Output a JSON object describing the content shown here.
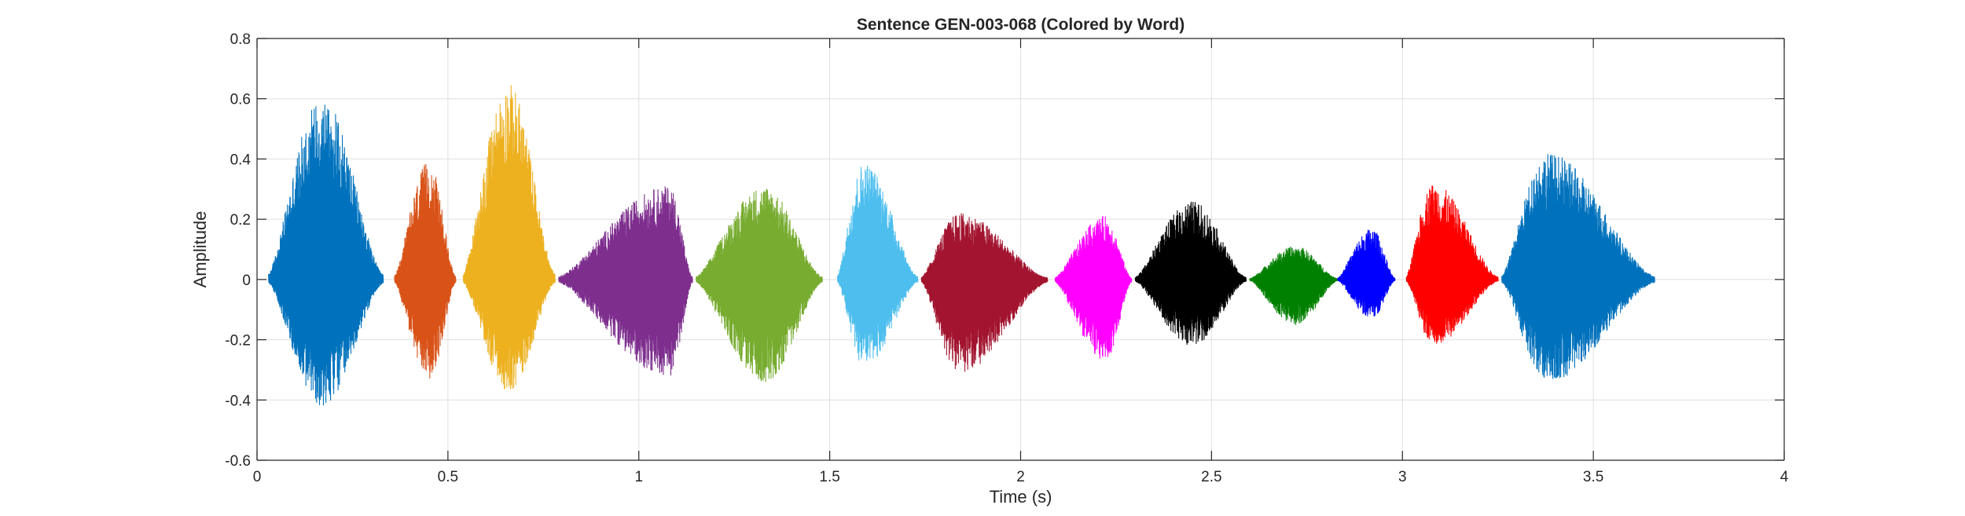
{
  "chart_data": {
    "type": "line",
    "title": "Sentence GEN-003-068 (Colored by Word)",
    "xlabel": "Time (s)",
    "ylabel": "Amplitude",
    "xlim": [
      0,
      4
    ],
    "ylim": [
      -0.6,
      0.8
    ],
    "x_ticks": [
      0,
      0.5,
      1,
      1.5,
      2,
      2.5,
      3,
      3.5,
      4
    ],
    "x_tick_labels": [
      "0",
      "0.5",
      "1",
      "1.5",
      "2",
      "2.5",
      "3",
      "3.5",
      "4"
    ],
    "y_ticks": [
      -0.6,
      -0.4,
      -0.2,
      0,
      0.2,
      0.4,
      0.6,
      0.8
    ],
    "y_tick_labels": [
      "-0.6",
      "-0.4",
      "-0.2",
      "0",
      "0.2",
      "0.4",
      "0.6",
      "0.8"
    ],
    "grid": true,
    "legend": "none",
    "series": [
      {
        "start": 0.03,
        "end": 0.33,
        "peak_t": 0.17,
        "max": 0.61,
        "min": -0.42,
        "color": "#0072BD"
      },
      {
        "start": 0.36,
        "end": 0.52,
        "peak_t": 0.45,
        "max": 0.39,
        "min": -0.33,
        "color": "#D95319"
      },
      {
        "start": 0.54,
        "end": 0.78,
        "peak_t": 0.66,
        "max": 0.65,
        "min": -0.37,
        "color": "#EDB120"
      },
      {
        "start": 0.79,
        "end": 1.14,
        "peak_t": 1.08,
        "max": 0.31,
        "min": -0.32,
        "color": "#7E2F8E"
      },
      {
        "start": 1.15,
        "end": 1.48,
        "peak_t": 1.33,
        "max": 0.31,
        "min": -0.34,
        "color": "#77AC30"
      },
      {
        "start": 1.52,
        "end": 1.73,
        "peak_t": 1.59,
        "max": 0.39,
        "min": -0.29,
        "color": "#4DBEEE"
      },
      {
        "start": 1.74,
        "end": 2.07,
        "peak_t": 1.84,
        "max": 0.22,
        "min": -0.31,
        "color": "#A2142F"
      },
      {
        "start": 2.09,
        "end": 2.29,
        "peak_t": 2.22,
        "max": 0.21,
        "min": -0.27,
        "color": "#FF00FF"
      },
      {
        "start": 2.3,
        "end": 2.59,
        "peak_t": 2.45,
        "max": 0.26,
        "min": -0.22,
        "color": "#000000"
      },
      {
        "start": 2.6,
        "end": 2.83,
        "peak_t": 2.72,
        "max": 0.11,
        "min": -0.15,
        "color": "#008000"
      },
      {
        "start": 2.83,
        "end": 2.98,
        "peak_t": 2.92,
        "max": 0.17,
        "min": -0.13,
        "color": "#0000FF"
      },
      {
        "start": 3.01,
        "end": 3.25,
        "peak_t": 3.08,
        "max": 0.32,
        "min": -0.22,
        "color": "#FF0000"
      },
      {
        "start": 3.26,
        "end": 3.66,
        "peak_t": 3.38,
        "max": 0.42,
        "min": -0.34,
        "color": "#0072BD"
      }
    ]
  }
}
